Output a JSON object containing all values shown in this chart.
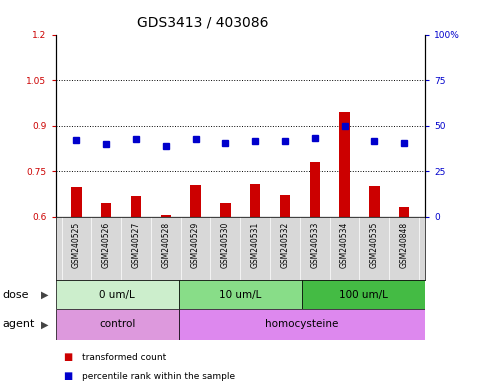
{
  "title": "GDS3413 / 403086",
  "samples": [
    "GSM240525",
    "GSM240526",
    "GSM240527",
    "GSM240528",
    "GSM240529",
    "GSM240530",
    "GSM240531",
    "GSM240532",
    "GSM240533",
    "GSM240534",
    "GSM240535",
    "GSM240848"
  ],
  "transformed_count": [
    0.7,
    0.645,
    0.67,
    0.608,
    0.705,
    0.645,
    0.71,
    0.672,
    0.78,
    0.945,
    0.703,
    0.632
  ],
  "percentile_rank": [
    0.856,
    0.842,
    0.851,
    0.836,
    0.856,
    0.841,
    0.849,
    0.849,
    0.863,
    0.9,
    0.849,
    0.841
  ],
  "bar_color": "#cc0000",
  "dot_color": "#0000cc",
  "ylim_left": [
    0.6,
    1.2
  ],
  "ylim_right": [
    0,
    100
  ],
  "yticks_left": [
    0.6,
    0.75,
    0.9,
    1.05,
    1.2
  ],
  "yticks_right": [
    0,
    25,
    50,
    75,
    100
  ],
  "ytick_labels_right": [
    "0",
    "25",
    "50",
    "75",
    "100%"
  ],
  "hlines": [
    0.75,
    0.9,
    1.05
  ],
  "dose_colors": [
    "#cceecc",
    "#88dd88",
    "#44bb44"
  ],
  "dose_groups": [
    {
      "label": "0 um/L",
      "start": 0,
      "end": 3
    },
    {
      "label": "10 um/L",
      "start": 4,
      "end": 7
    },
    {
      "label": "100 um/L",
      "start": 8,
      "end": 11
    }
  ],
  "agent_color_control": "#dd99dd",
  "agent_color_homocysteine": "#dd88ee",
  "agent_groups": [
    {
      "label": "control",
      "start": 0,
      "end": 3
    },
    {
      "label": "homocysteine",
      "start": 4,
      "end": 11
    }
  ],
  "dose_label": "dose",
  "agent_label": "agent",
  "legend_bar": "transformed count",
  "legend_dot": "percentile rank within the sample",
  "bar_width": 0.35,
  "title_fontsize": 10,
  "tick_label_fontsize": 6.5,
  "annotation_fontsize": 8,
  "background_color": "#d8d8d8"
}
